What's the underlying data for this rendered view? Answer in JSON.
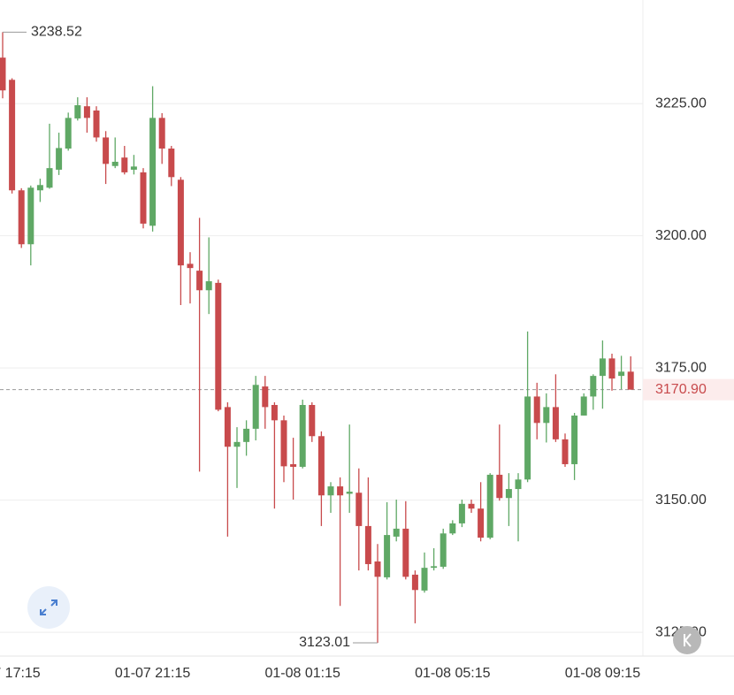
{
  "chart_data": {
    "type": "candlestick",
    "up_color": "#5fa865",
    "down_color": "#c84a4c",
    "categories": [
      "01-07 17:15",
      null,
      null,
      null,
      null,
      null,
      null,
      null,
      null,
      null,
      null,
      null,
      null,
      null,
      null,
      null,
      "01-07 21:15",
      null,
      null,
      null,
      null,
      null,
      null,
      null,
      null,
      null,
      null,
      null,
      null,
      null,
      null,
      null,
      "01-08 01:15",
      null,
      null,
      null,
      null,
      null,
      null,
      null,
      null,
      null,
      null,
      null,
      null,
      null,
      null,
      null,
      "01-08 05:15",
      null,
      null,
      null,
      null,
      null,
      null,
      null,
      null,
      null,
      null,
      null,
      null,
      null,
      null,
      null,
      "01-08 09:15",
      null,
      null,
      null
    ],
    "open": [
      3233.7,
      3229.5,
      3208.6,
      3198.4,
      3208.6,
      3209.1,
      3212.5,
      3216.5,
      3222.2,
      3224.5,
      3223.7,
      3218.6,
      3213.2,
      3214.8,
      3212.5,
      3212.0,
      3201.9,
      3222.3,
      3216.5,
      3210.6,
      3194.7,
      3193.4,
      3189.7,
      3191.1,
      3167.6,
      3160.1,
      3161.0,
      3163.5,
      3171.5,
      3168.0,
      3165.1,
      3156.8,
      3156.3,
      3168.0,
      3162.1,
      3150.9,
      3152.6,
      3151.2,
      3151.4,
      3145.1,
      3138.4,
      3135.4,
      3143.1,
      3144.6,
      3135.9,
      3132.9,
      3137.2,
      3137.4,
      3143.7,
      3145.6,
      3149.3,
      3148.4,
      3142.9,
      3154.8,
      3150.4,
      3152.1,
      3153.9,
      3169.6,
      3164.6,
      3167.6,
      3161.5,
      3156.8,
      3166.0,
      3169.6,
      3173.5,
      3176.8,
      3173.5,
      3174.3
    ],
    "high": [
      3238.52,
      3229.8,
      3209.0,
      3209.5,
      3210.8,
      3221.2,
      3219.5,
      3223.3,
      3226.2,
      3226.2,
      3224.5,
      3219.8,
      3218.6,
      3217.0,
      3215.3,
      3212.8,
      3228.3,
      3223.2,
      3217.0,
      3211.1,
      3196.9,
      3203.4,
      3199.7,
      3191.7,
      3168.5,
      3163.8,
      3165.1,
      3173.5,
      3173.5,
      3168.5,
      3166.0,
      3161.8,
      3169.0,
      3168.5,
      3163.0,
      3153.4,
      3154.3,
      3164.3,
      3156.0,
      3154.3,
      3141.7,
      3149.6,
      3150.1,
      3149.8,
      3136.7,
      3140.1,
      3140.9,
      3144.6,
      3146.2,
      3150.1,
      3150.1,
      3153.4,
      3155.1,
      3164.3,
      3155.1,
      3155.1,
      3181.9,
      3172.2,
      3170.2,
      3173.8,
      3162.6,
      3166.5,
      3170.2,
      3173.8,
      3180.2,
      3177.7,
      3177.3,
      3177.2
    ],
    "low": [
      3226.0,
      3208.0,
      3197.7,
      3194.4,
      3206.4,
      3208.9,
      3211.5,
      3216.1,
      3221.8,
      3219.5,
      3217.8,
      3209.8,
      3212.8,
      3211.6,
      3211.6,
      3201.4,
      3200.8,
      3213.6,
      3209.4,
      3186.9,
      3187.2,
      3155.4,
      3185.2,
      3166.8,
      3143.1,
      3152.3,
      3158.4,
      3161.3,
      3163.5,
      3148.4,
      3153.4,
      3150.1,
      3156.0,
      3161.0,
      3145.1,
      3147.6,
      3130.0,
      3147.6,
      3136.7,
      3136.7,
      3123.01,
      3135.0,
      3142.2,
      3135.0,
      3126.7,
      3132.5,
      3136.7,
      3137.0,
      3143.4,
      3144.9,
      3147.6,
      3142.2,
      3142.6,
      3149.9,
      3145.1,
      3142.2,
      3153.4,
      3161.5,
      3160.9,
      3161.0,
      3156.3,
      3153.8,
      3166.0,
      3167.1,
      3167.3,
      3170.7,
      3171.0,
      3170.9
    ],
    "close": [
      3227.5,
      3208.6,
      3198.4,
      3209.1,
      3209.6,
      3212.8,
      3216.6,
      3222.3,
      3224.7,
      3222.3,
      3218.6,
      3213.6,
      3214.0,
      3212.0,
      3213.1,
      3202.3,
      3222.3,
      3216.5,
      3211.1,
      3194.4,
      3193.9,
      3189.7,
      3191.4,
      3167.1,
      3160.1,
      3161.0,
      3163.5,
      3171.8,
      3167.6,
      3165.1,
      3156.4,
      3156.3,
      3168.0,
      3162.1,
      3150.9,
      3152.6,
      3150.9,
      3151.6,
      3145.1,
      3137.9,
      3135.5,
      3143.4,
      3144.6,
      3135.5,
      3133.0,
      3137.2,
      3137.5,
      3143.7,
      3145.6,
      3149.3,
      3148.4,
      3142.9,
      3154.8,
      3150.4,
      3152.1,
      3153.9,
      3169.6,
      3164.6,
      3167.6,
      3161.5,
      3156.8,
      3166.0,
      3169.6,
      3173.5,
      3176.8,
      3173.0,
      3174.3,
      3170.9
    ],
    "ylim": [
      3120.5,
      3244.6
    ],
    "yticks": [
      {
        "value": 3125,
        "label": "3125.00"
      },
      {
        "value": 3150,
        "label": "3150.00"
      },
      {
        "value": 3175,
        "label": "3175.00"
      },
      {
        "value": 3200,
        "label": "3200.00"
      },
      {
        "value": 3225,
        "label": "3225.00"
      }
    ],
    "grid": true,
    "last_price": {
      "value": 3170.9,
      "label": "3170.90"
    },
    "max_index": 0,
    "min_index": 40
  }
}
